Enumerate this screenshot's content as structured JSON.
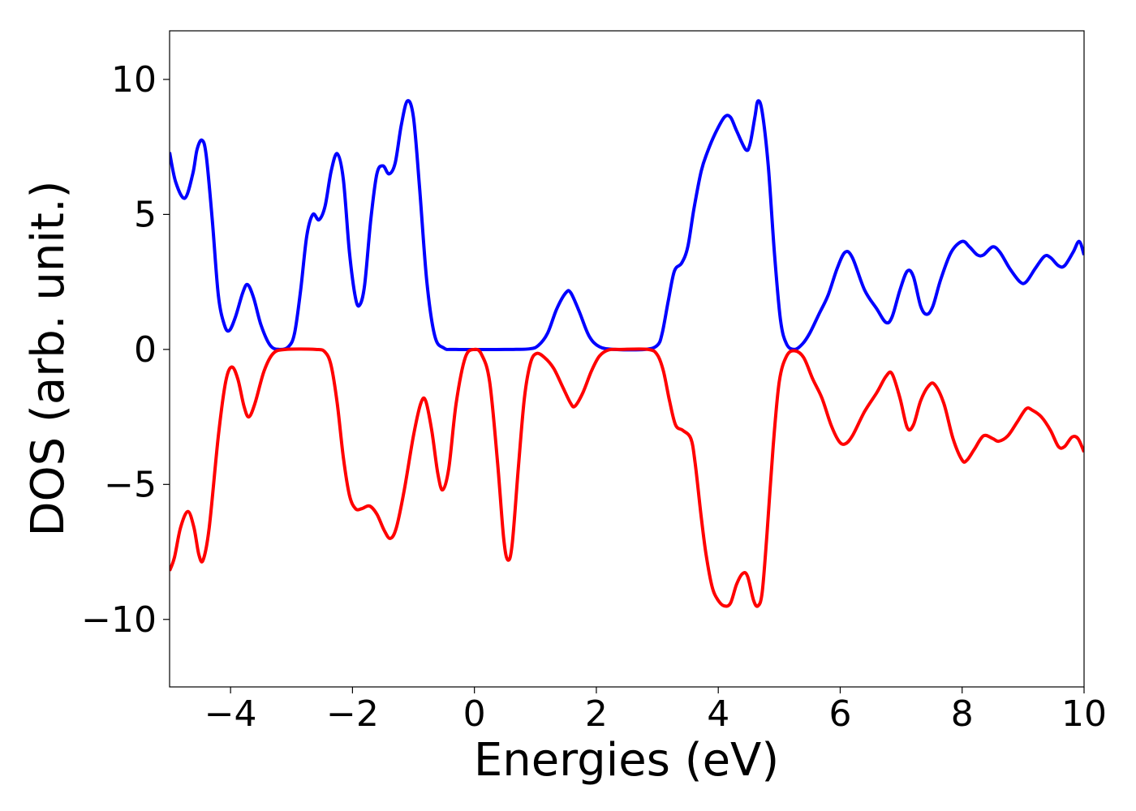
{
  "chart_data": {
    "type": "line",
    "xlabel": "Energies (eV)",
    "ylabel": "DOS (arb. unit.)",
    "xlim": [
      -5,
      10
    ],
    "ylim": [
      -12.5,
      11.8
    ],
    "grid": false,
    "xticks": [
      {
        "value": -4,
        "label": "−4"
      },
      {
        "value": -2,
        "label": "−2"
      },
      {
        "value": 0,
        "label": "0"
      },
      {
        "value": 2,
        "label": "2"
      },
      {
        "value": 4,
        "label": "4"
      },
      {
        "value": 6,
        "label": "6"
      },
      {
        "value": 8,
        "label": "8"
      },
      {
        "value": 10,
        "label": "10"
      }
    ],
    "yticks": [
      {
        "value": 10,
        "label": "10"
      },
      {
        "value": 5,
        "label": "5"
      },
      {
        "value": 0,
        "label": "0"
      },
      {
        "value": -5,
        "label": "−5"
      },
      {
        "value": -10,
        "label": "−10"
      }
    ],
    "series": [
      {
        "color": "#0000ff",
        "points": [
          [
            -5.0,
            7.3
          ],
          [
            -4.9,
            6.2
          ],
          [
            -4.75,
            5.6
          ],
          [
            -4.62,
            6.5
          ],
          [
            -4.55,
            7.4
          ],
          [
            -4.47,
            7.75
          ],
          [
            -4.4,
            7.2
          ],
          [
            -4.3,
            4.8
          ],
          [
            -4.2,
            2.0
          ],
          [
            -4.1,
            0.9
          ],
          [
            -4.02,
            0.7
          ],
          [
            -3.92,
            1.2
          ],
          [
            -3.8,
            2.1
          ],
          [
            -3.72,
            2.4
          ],
          [
            -3.62,
            1.9
          ],
          [
            -3.5,
            0.9
          ],
          [
            -3.35,
            0.15
          ],
          [
            -3.2,
            0.0
          ],
          [
            -3.05,
            0.1
          ],
          [
            -2.95,
            0.6
          ],
          [
            -2.85,
            2.2
          ],
          [
            -2.75,
            4.2
          ],
          [
            -2.65,
            5.0
          ],
          [
            -2.55,
            4.8
          ],
          [
            -2.45,
            5.3
          ],
          [
            -2.35,
            6.6
          ],
          [
            -2.25,
            7.25
          ],
          [
            -2.15,
            6.3
          ],
          [
            -2.05,
            3.6
          ],
          [
            -1.95,
            1.9
          ],
          [
            -1.88,
            1.65
          ],
          [
            -1.8,
            2.4
          ],
          [
            -1.7,
            4.8
          ],
          [
            -1.6,
            6.5
          ],
          [
            -1.5,
            6.8
          ],
          [
            -1.4,
            6.5
          ],
          [
            -1.3,
            6.9
          ],
          [
            -1.2,
            8.3
          ],
          [
            -1.1,
            9.2
          ],
          [
            -1.0,
            8.6
          ],
          [
            -0.9,
            6.0
          ],
          [
            -0.78,
            2.5
          ],
          [
            -0.65,
            0.5
          ],
          [
            -0.5,
            0.05
          ],
          [
            -0.3,
            0.0
          ],
          [
            0.5,
            0.0
          ],
          [
            0.9,
            0.02
          ],
          [
            1.05,
            0.15
          ],
          [
            1.2,
            0.6
          ],
          [
            1.35,
            1.5
          ],
          [
            1.5,
            2.1
          ],
          [
            1.58,
            2.1
          ],
          [
            1.72,
            1.4
          ],
          [
            1.88,
            0.5
          ],
          [
            2.05,
            0.1
          ],
          [
            2.3,
            0.0
          ],
          [
            2.8,
            0.0
          ],
          [
            3.0,
            0.15
          ],
          [
            3.08,
            0.6
          ],
          [
            3.18,
            1.8
          ],
          [
            3.28,
            2.9
          ],
          [
            3.4,
            3.2
          ],
          [
            3.5,
            3.8
          ],
          [
            3.6,
            5.2
          ],
          [
            3.72,
            6.6
          ],
          [
            3.82,
            7.3
          ],
          [
            3.95,
            8.0
          ],
          [
            4.1,
            8.6
          ],
          [
            4.2,
            8.6
          ],
          [
            4.3,
            8.1
          ],
          [
            4.45,
            7.4
          ],
          [
            4.52,
            7.6
          ],
          [
            4.6,
            8.6
          ],
          [
            4.65,
            9.2
          ],
          [
            4.72,
            8.8
          ],
          [
            4.82,
            6.8
          ],
          [
            4.92,
            3.6
          ],
          [
            5.02,
            1.1
          ],
          [
            5.12,
            0.2
          ],
          [
            5.25,
            0.0
          ],
          [
            5.38,
            0.2
          ],
          [
            5.5,
            0.6
          ],
          [
            5.65,
            1.3
          ],
          [
            5.8,
            2.0
          ],
          [
            5.95,
            3.0
          ],
          [
            6.08,
            3.6
          ],
          [
            6.2,
            3.4
          ],
          [
            6.4,
            2.2
          ],
          [
            6.6,
            1.5
          ],
          [
            6.75,
            1.0
          ],
          [
            6.85,
            1.2
          ],
          [
            6.98,
            2.2
          ],
          [
            7.1,
            2.9
          ],
          [
            7.2,
            2.7
          ],
          [
            7.32,
            1.6
          ],
          [
            7.42,
            1.3
          ],
          [
            7.52,
            1.6
          ],
          [
            7.65,
            2.6
          ],
          [
            7.82,
            3.6
          ],
          [
            8.0,
            4.0
          ],
          [
            8.12,
            3.8
          ],
          [
            8.25,
            3.5
          ],
          [
            8.35,
            3.5
          ],
          [
            8.5,
            3.8
          ],
          [
            8.62,
            3.6
          ],
          [
            8.78,
            3.0
          ],
          [
            8.95,
            2.5
          ],
          [
            9.05,
            2.5
          ],
          [
            9.2,
            3.0
          ],
          [
            9.35,
            3.45
          ],
          [
            9.45,
            3.4
          ],
          [
            9.58,
            3.1
          ],
          [
            9.68,
            3.1
          ],
          [
            9.82,
            3.6
          ],
          [
            9.92,
            4.0
          ],
          [
            10.0,
            3.5
          ]
        ]
      },
      {
        "color": "#ff0000",
        "points": [
          [
            -5.0,
            -8.2
          ],
          [
            -4.92,
            -7.7
          ],
          [
            -4.82,
            -6.6
          ],
          [
            -4.7,
            -6.0
          ],
          [
            -4.6,
            -6.6
          ],
          [
            -4.52,
            -7.6
          ],
          [
            -4.45,
            -7.8
          ],
          [
            -4.35,
            -6.6
          ],
          [
            -4.2,
            -3.2
          ],
          [
            -4.08,
            -1.2
          ],
          [
            -3.98,
            -0.65
          ],
          [
            -3.88,
            -1.1
          ],
          [
            -3.78,
            -2.1
          ],
          [
            -3.7,
            -2.5
          ],
          [
            -3.6,
            -2.0
          ],
          [
            -3.45,
            -0.8
          ],
          [
            -3.3,
            -0.15
          ],
          [
            -3.1,
            0.0
          ],
          [
            -2.6,
            0.0
          ],
          [
            -2.45,
            -0.1
          ],
          [
            -2.35,
            -0.6
          ],
          [
            -2.25,
            -2.0
          ],
          [
            -2.15,
            -4.0
          ],
          [
            -2.05,
            -5.4
          ],
          [
            -1.95,
            -5.9
          ],
          [
            -1.85,
            -5.9
          ],
          [
            -1.72,
            -5.8
          ],
          [
            -1.6,
            -6.1
          ],
          [
            -1.48,
            -6.7
          ],
          [
            -1.38,
            -7.0
          ],
          [
            -1.28,
            -6.6
          ],
          [
            -1.15,
            -5.2
          ],
          [
            -1.0,
            -3.2
          ],
          [
            -0.88,
            -2.0
          ],
          [
            -0.8,
            -1.9
          ],
          [
            -0.7,
            -3.0
          ],
          [
            -0.6,
            -4.6
          ],
          [
            -0.52,
            -5.2
          ],
          [
            -0.42,
            -4.4
          ],
          [
            -0.3,
            -2.0
          ],
          [
            -0.15,
            -0.3
          ],
          [
            0.0,
            0.0
          ],
          [
            0.12,
            -0.2
          ],
          [
            0.25,
            -1.2
          ],
          [
            0.38,
            -4.2
          ],
          [
            0.48,
            -7.0
          ],
          [
            0.55,
            -7.8
          ],
          [
            0.62,
            -7.2
          ],
          [
            0.72,
            -4.4
          ],
          [
            0.82,
            -1.8
          ],
          [
            0.92,
            -0.5
          ],
          [
            1.02,
            -0.15
          ],
          [
            1.15,
            -0.3
          ],
          [
            1.3,
            -0.7
          ],
          [
            1.45,
            -1.4
          ],
          [
            1.58,
            -2.0
          ],
          [
            1.65,
            -2.1
          ],
          [
            1.78,
            -1.6
          ],
          [
            1.92,
            -0.8
          ],
          [
            2.05,
            -0.25
          ],
          [
            2.2,
            -0.02
          ],
          [
            2.4,
            0.0
          ],
          [
            2.85,
            0.0
          ],
          [
            3.0,
            -0.2
          ],
          [
            3.1,
            -0.8
          ],
          [
            3.2,
            -1.9
          ],
          [
            3.3,
            -2.8
          ],
          [
            3.42,
            -3.0
          ],
          [
            3.55,
            -3.3
          ],
          [
            3.62,
            -4.2
          ],
          [
            3.72,
            -6.2
          ],
          [
            3.8,
            -7.6
          ],
          [
            3.9,
            -8.8
          ],
          [
            4.0,
            -9.3
          ],
          [
            4.1,
            -9.5
          ],
          [
            4.2,
            -9.4
          ],
          [
            4.3,
            -8.7
          ],
          [
            4.4,
            -8.3
          ],
          [
            4.48,
            -8.4
          ],
          [
            4.58,
            -9.3
          ],
          [
            4.65,
            -9.5
          ],
          [
            4.72,
            -9.0
          ],
          [
            4.8,
            -6.8
          ],
          [
            4.9,
            -3.6
          ],
          [
            5.0,
            -1.2
          ],
          [
            5.12,
            -0.25
          ],
          [
            5.25,
            -0.05
          ],
          [
            5.4,
            -0.3
          ],
          [
            5.55,
            -1.1
          ],
          [
            5.7,
            -1.8
          ],
          [
            5.85,
            -2.8
          ],
          [
            5.98,
            -3.4
          ],
          [
            6.08,
            -3.5
          ],
          [
            6.2,
            -3.2
          ],
          [
            6.4,
            -2.3
          ],
          [
            6.6,
            -1.6
          ],
          [
            6.75,
            -1.0
          ],
          [
            6.85,
            -0.9
          ],
          [
            6.98,
            -1.8
          ],
          [
            7.1,
            -2.9
          ],
          [
            7.2,
            -2.8
          ],
          [
            7.32,
            -1.9
          ],
          [
            7.45,
            -1.35
          ],
          [
            7.55,
            -1.3
          ],
          [
            7.7,
            -2.0
          ],
          [
            7.85,
            -3.3
          ],
          [
            8.0,
            -4.1
          ],
          [
            8.08,
            -4.1
          ],
          [
            8.2,
            -3.7
          ],
          [
            8.35,
            -3.2
          ],
          [
            8.5,
            -3.3
          ],
          [
            8.6,
            -3.4
          ],
          [
            8.75,
            -3.2
          ],
          [
            8.9,
            -2.7
          ],
          [
            9.05,
            -2.2
          ],
          [
            9.15,
            -2.25
          ],
          [
            9.3,
            -2.5
          ],
          [
            9.45,
            -3.0
          ],
          [
            9.58,
            -3.6
          ],
          [
            9.68,
            -3.6
          ],
          [
            9.8,
            -3.25
          ],
          [
            9.9,
            -3.3
          ],
          [
            10.0,
            -3.8
          ]
        ]
      }
    ]
  }
}
